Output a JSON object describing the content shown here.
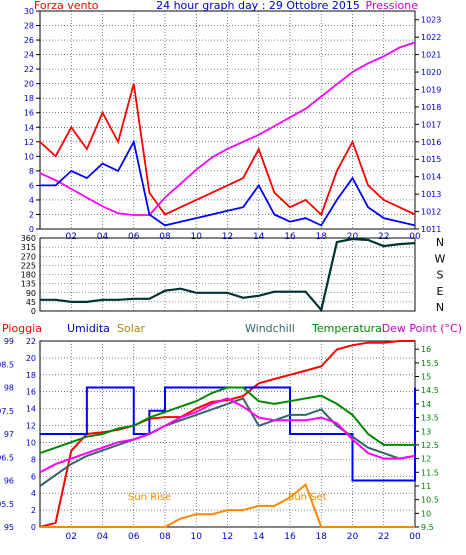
{
  "panel1": {
    "title": "24 hour graph day : 29 Ottobre 2015",
    "left_label": "Forza vento",
    "right_label": "Pressione",
    "y_left_ticks": [
      0,
      2,
      4,
      6,
      8,
      10,
      12,
      14,
      16,
      18,
      20,
      22,
      24,
      26,
      28,
      30
    ],
    "y_right_ticks": [
      1011,
      1012,
      1013,
      1014,
      1015,
      1016,
      1017,
      1018,
      1019,
      1020,
      1021,
      1022,
      1023
    ],
    "x_ticks": [
      "02",
      "04",
      "06",
      "08",
      "10",
      "12",
      "14",
      "16",
      "18",
      "20",
      "22",
      "00"
    ],
    "colors": {
      "gust": "#ff0000",
      "wind": "#0000ff",
      "pressure": "#ff00ff",
      "label_left": "#ff0000",
      "label_right": "#cc00cc",
      "title": "#0000cc"
    }
  },
  "panel2": {
    "y_ticks": [
      0,
      45,
      90,
      135,
      180,
      225,
      270,
      315,
      360
    ],
    "compass": [
      "N",
      "W",
      "S",
      "E",
      "N"
    ],
    "color": "#003333"
  },
  "panel3": {
    "labels": {
      "rain": "Pioggia",
      "humidity": "Umidita",
      "solar": "Solar",
      "windchill": "Windchill",
      "temperature": "Temperatura",
      "dewpoint": "Dew Point (°C)"
    },
    "y_far_left_ticks": [
      95,
      95.5,
      96,
      96.5,
      97,
      97.5,
      98,
      98.5,
      99
    ],
    "y_left_ticks": [
      0,
      2,
      4,
      6,
      8,
      10,
      12,
      14,
      16,
      18,
      20,
      22
    ],
    "y_right_ticks": [
      9.5,
      10,
      10.5,
      11,
      11.5,
      12,
      12.5,
      13,
      13.5,
      14,
      14.5,
      15,
      15.5,
      16
    ],
    "x_ticks": [
      "02",
      "04",
      "06",
      "08",
      "10",
      "12",
      "14",
      "16",
      "18",
      "20",
      "22",
      "00"
    ],
    "annotations": {
      "sunrise": "Sun Rise",
      "sunset": "Sun Set"
    },
    "colors": {
      "rain": "#ff0000",
      "humidity": "#0000ff",
      "solar": "#ff8800",
      "windchill": "#336666",
      "temperature": "#008800",
      "dewpoint": "#ff00ff"
    }
  },
  "chart_data": [
    {
      "type": "line",
      "title": "24 hour graph day : 29 Ottobre 2015",
      "x_hours": [
        0,
        1,
        2,
        3,
        4,
        5,
        6,
        7,
        8,
        9,
        10,
        11,
        12,
        13,
        14,
        15,
        16,
        17,
        18,
        19,
        20,
        21,
        22,
        23,
        24
      ],
      "series": [
        {
          "name": "Forza vento",
          "axis": "left",
          "values": [
            12,
            10,
            14,
            11,
            16,
            12,
            20,
            5,
            2,
            3,
            4,
            5,
            6,
            7,
            11,
            5,
            3,
            4,
            2,
            8,
            12,
            6,
            4,
            3,
            2
          ]
        },
        {
          "name": "Pressione",
          "axis": "right",
          "values": [
            1014.2,
            1013.8,
            1013.3,
            1012.8,
            1012.3,
            1011.9,
            1011.8,
            1011.8,
            1012.8,
            1013.6,
            1014.4,
            1015.1,
            1015.6,
            1016.0,
            1016.4,
            1016.9,
            1017.4,
            1017.9,
            1018.6,
            1019.3,
            1020.0,
            1020.5,
            1020.9,
            1021.4,
            1021.7
          ]
        },
        {
          "axis": "left",
          "values": [
            6,
            6,
            8,
            7,
            9,
            8,
            12,
            2,
            0.5,
            1,
            1.5,
            2,
            2.5,
            3,
            6,
            2,
            1,
            1.5,
            0.5,
            4,
            7,
            3,
            1.5,
            1,
            0.5
          ]
        }
      ],
      "ylim_left": [
        0,
        30
      ],
      "ylim_right": [
        1011,
        1023.5
      ],
      "grid": true
    },
    {
      "type": "line",
      "x_hours": [
        0,
        1,
        2,
        3,
        4,
        5,
        6,
        7,
        8,
        9,
        10,
        11,
        12,
        13,
        14,
        15,
        16,
        17,
        18,
        19,
        20,
        21,
        22,
        23,
        24
      ],
      "series": [
        {
          "values": [
            55,
            55,
            45,
            45,
            55,
            55,
            60,
            60,
            100,
            110,
            90,
            90,
            90,
            65,
            75,
            95,
            95,
            95,
            5,
            340,
            355,
            350,
            320,
            330,
            335
          ]
        }
      ],
      "ylim": [
        0,
        360
      ],
      "grid": true
    },
    {
      "type": "line",
      "x_hours": [
        0,
        1,
        2,
        3,
        4,
        5,
        6,
        7,
        8,
        9,
        10,
        11,
        12,
        13,
        14,
        15,
        16,
        17,
        18,
        19,
        20,
        21,
        22,
        23,
        24
      ],
      "series": [
        {
          "name": "Pioggia",
          "axis": "left",
          "values": [
            0,
            0.5,
            9,
            11,
            11.2,
            11.5,
            12,
            12.8,
            13,
            13,
            14,
            14.8,
            15,
            15.5,
            17,
            17.5,
            18,
            18.5,
            19,
            21,
            21.5,
            21.8,
            21.8,
            22,
            22
          ]
        },
        {
          "name": "Umidita",
          "axis": "far_left",
          "values": [
            97,
            97,
            97,
            98,
            98,
            98,
            97,
            97.5,
            98,
            98,
            98,
            98,
            98,
            98,
            98,
            98,
            97,
            97,
            97,
            97,
            96,
            96,
            96,
            96,
            98
          ]
        },
        {
          "name": "Solar",
          "axis": "left",
          "values": [
            0,
            0,
            0,
            0,
            0,
            0,
            0,
            0,
            0,
            1,
            1.5,
            1.5,
            2,
            2,
            2.5,
            2.5,
            3.5,
            5,
            0,
            0,
            0,
            0,
            0,
            0,
            0
          ]
        },
        {
          "name": "Windchill",
          "axis": "right",
          "values": [
            11,
            11.4,
            11.8,
            12.1,
            12.3,
            12.5,
            12.7,
            12.9,
            13.2,
            13.4,
            13.6,
            13.8,
            14.0,
            14.2,
            13.2,
            13.4,
            13.6,
            13.6,
            13.8,
            13.2,
            12.8,
            12.4,
            12.2,
            12.0,
            12.1
          ]
        },
        {
          "name": "Temperatura",
          "axis": "right",
          "values": [
            12.2,
            12.4,
            12.6,
            12.8,
            12.9,
            13.1,
            13.2,
            13.5,
            13.7,
            13.9,
            14.1,
            14.4,
            14.6,
            14.6,
            14.1,
            14.0,
            14.1,
            14.2,
            14.3,
            14.0,
            13.6,
            12.9,
            12.5,
            12.5,
            12.5
          ]
        },
        {
          "name": "Dew Point (°C)",
          "axis": "right",
          "values": [
            11.5,
            11.8,
            12.0,
            12.2,
            12.4,
            12.6,
            12.7,
            12.9,
            13.2,
            13.5,
            13.7,
            14.0,
            14.2,
            13.9,
            13.5,
            13.4,
            13.4,
            13.4,
            13.5,
            13.3,
            12.7,
            12.2,
            12.0,
            12.0,
            12.1
          ]
        }
      ],
      "ylim_left": [
        0,
        22
      ],
      "ylim_far_left": [
        95,
        99
      ],
      "ylim_right": [
        9.5,
        16.3
      ],
      "grid": true
    }
  ]
}
